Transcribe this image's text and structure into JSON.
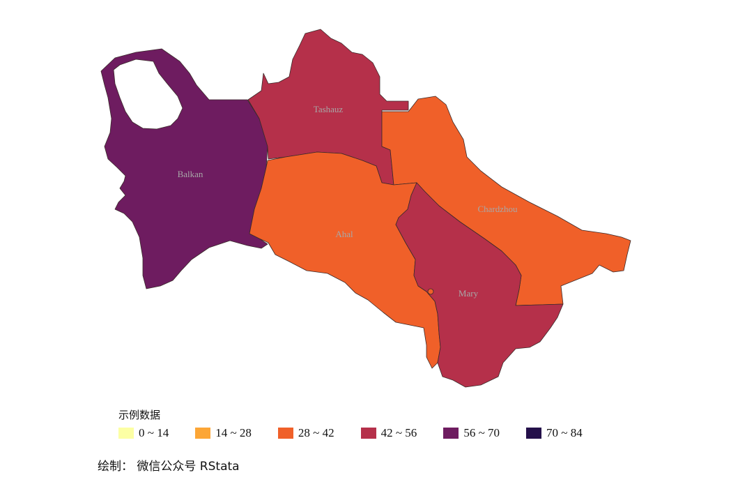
{
  "legend": {
    "title": "示例数据",
    "items": [
      {
        "label": "0 ~ 14",
        "color": "#fcffa4"
      },
      {
        "label": "14 ~ 28",
        "color": "#fca636"
      },
      {
        "label": "28 ~ 42",
        "color": "#f06029"
      },
      {
        "label": "42 ~ 56",
        "color": "#b5304a"
      },
      {
        "label": "56 ~ 70",
        "color": "#6e1c60"
      },
      {
        "label": "70 ~ 84",
        "color": "#24104a"
      }
    ]
  },
  "regions": [
    {
      "name": "Balkan",
      "bin": 4,
      "color": "#6e1c60"
    },
    {
      "name": "Tashauz",
      "bin": 3,
      "color": "#b5304a"
    },
    {
      "name": "Ahal",
      "bin": 2,
      "color": "#f06029"
    },
    {
      "name": "Chardzhou",
      "bin": 2,
      "color": "#f06029"
    },
    {
      "name": "Mary",
      "bin": 3,
      "color": "#b5304a"
    }
  ],
  "credit": "绘制： 微信公众号 RStata"
}
